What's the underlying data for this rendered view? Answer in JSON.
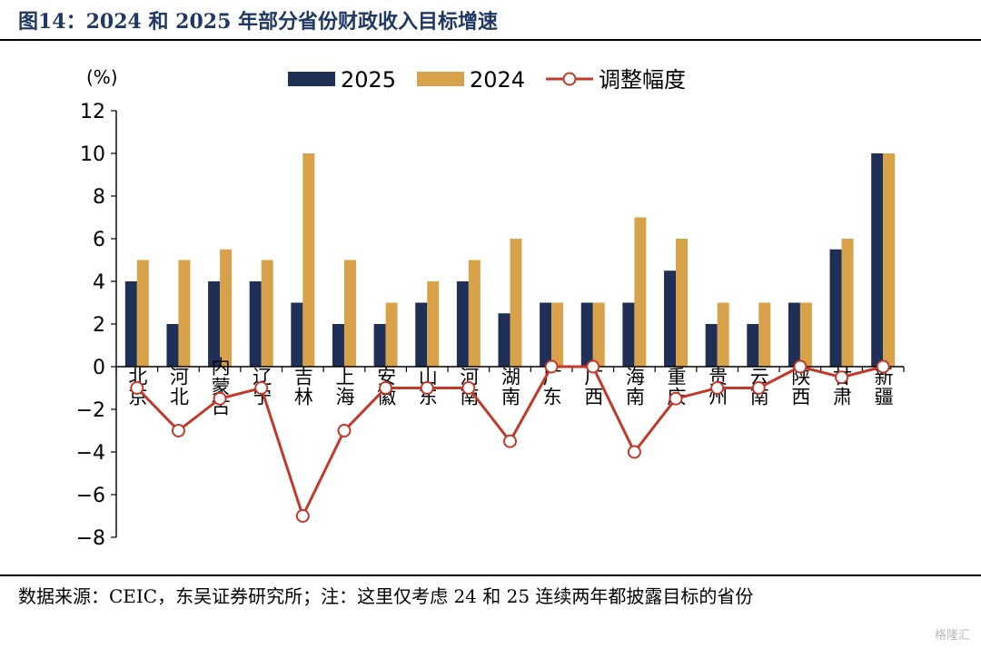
{
  "title": "图14：2024 和 2025 年部分省份财政收入目标增速",
  "source": "数据来源：CEIC，东吴证券研究所；注：这里仅考虑 24 和 25 连续两年都披露目标的省份",
  "watermark": "格隆汇",
  "chart_data": {
    "type": "bar",
    "unit_label": "(%)",
    "categories": [
      "北京",
      "河北",
      "内蒙古",
      "辽宁",
      "吉林",
      "上海",
      "安徽",
      "山东",
      "河南",
      "湖南",
      "广东",
      "广西",
      "海南",
      "重庆",
      "贵州",
      "云南",
      "陕西",
      "甘肃",
      "新疆"
    ],
    "series": [
      {
        "name": "2025",
        "type": "bar",
        "color": "#1f2f55",
        "values": [
          4,
          2,
          4,
          4,
          3,
          2,
          2,
          3,
          4,
          2.5,
          3,
          3,
          3,
          4.5,
          2,
          2,
          3,
          5.5,
          10
        ]
      },
      {
        "name": "2024",
        "type": "bar",
        "color": "#d8a24a",
        "values": [
          5,
          5,
          5.5,
          5,
          10,
          5,
          3,
          4,
          5,
          6,
          3,
          3,
          7,
          6,
          3,
          3,
          3,
          6,
          10
        ]
      },
      {
        "name": "调整幅度",
        "type": "line",
        "color": "#c0392b",
        "values": [
          -1,
          -3,
          -1.5,
          -1,
          -7,
          -3,
          -1,
          -1,
          -1,
          -3.5,
          0,
          0,
          -4,
          -1.5,
          -1,
          -1,
          0,
          -0.5,
          0
        ]
      }
    ],
    "ylim": [
      -8,
      12
    ],
    "yticks": [
      12,
      10,
      8,
      6,
      4,
      2,
      0,
      -2,
      -4,
      -6,
      -8
    ],
    "ytick_labels": [
      "12",
      "10",
      "8",
      "6",
      "4",
      "2",
      "0",
      "−2",
      "−4",
      "−6",
      "−8"
    ],
    "legend_position": "top-center",
    "grid": false
  }
}
